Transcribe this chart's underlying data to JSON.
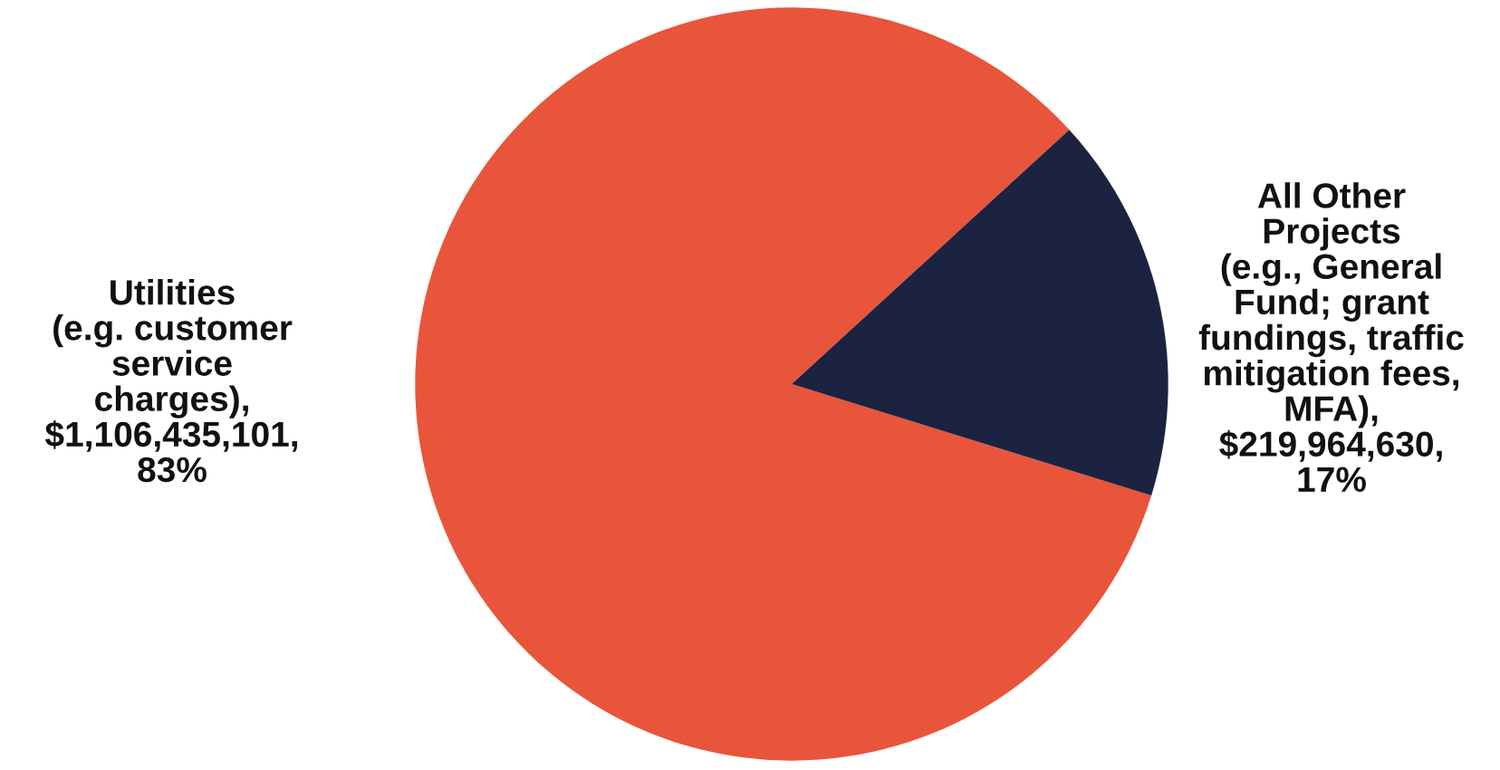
{
  "chart_data": {
    "type": "pie",
    "categories": [
      "Utilities\n(e.g. customer\nservice\ncharges)",
      "All Other\nProjects\n(e.g., General\nFund; grant\nfundings, traffic\nmitigation fees,\nMFA)"
    ],
    "values": [
      1106435101,
      219964630
    ],
    "value_labels": [
      ",\n$1,106,435,101,\n83%",
      ",\n$219,964,630,\n17%"
    ],
    "colors": [
      "#e8553a",
      "#1b2340"
    ],
    "legend": false
  }
}
